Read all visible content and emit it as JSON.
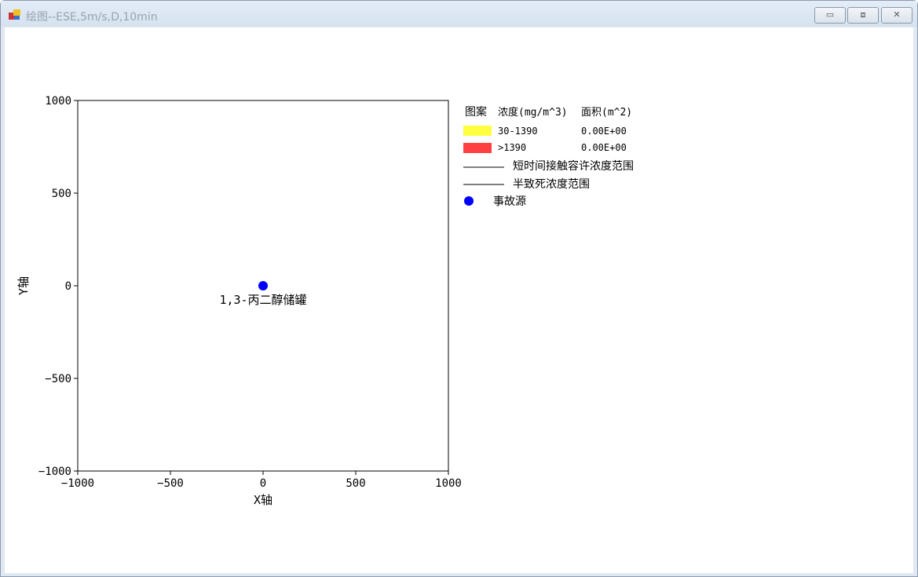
{
  "window": {
    "title": "绘图--ESE,5m/s,D,10min",
    "controls": {
      "minimize": "▭",
      "maximize": "⧈",
      "close": "✕"
    }
  },
  "chart_data": {
    "type": "scatter",
    "xlabel": "X轴",
    "ylabel": "Y轴",
    "xlim": [
      -1000,
      1000
    ],
    "ylim": [
      -1000,
      1000
    ],
    "xticks": [
      "−1000",
      "−500",
      "0",
      "500",
      "1000"
    ],
    "xtick_values": [
      -1000,
      -500,
      0,
      500,
      1000
    ],
    "yticks": [
      "1000",
      "500",
      "0",
      "−500",
      "−1000"
    ],
    "ytick_values": [
      1000,
      500,
      0,
      -500,
      -1000
    ],
    "grid": false,
    "points": [
      {
        "x": 0,
        "y": 0,
        "label": "1,3-丙二醇储罐",
        "color": "#0000ff"
      }
    ],
    "legend": {
      "placement": "right",
      "headers": [
        "图案",
        "浓度(mg/m^3)",
        "面积(m^2)"
      ],
      "rows": [
        {
          "color": "#ffff40",
          "range": "30-1390",
          "area": "0.00E+00"
        },
        {
          "color": "#ff4040",
          "range": ">1390",
          "area": "0.00E+00"
        }
      ],
      "lines": [
        "短时间接触容许浓度范围",
        "半致死浓度范围"
      ],
      "source": {
        "color": "#0000ff",
        "label": "事故源"
      }
    }
  }
}
